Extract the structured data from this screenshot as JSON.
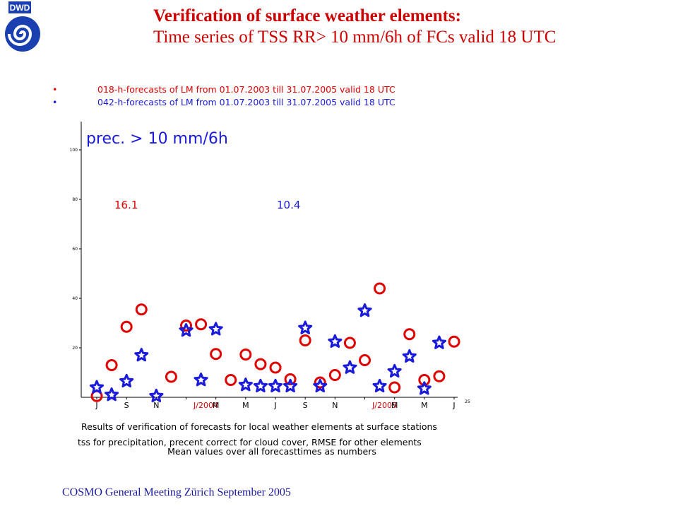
{
  "logo": {
    "text": "DWD"
  },
  "header": {
    "title": "Verification of surface weather elements:",
    "subtitle": "Time series of  TSS RR> 10 mm/6h  of FCs valid 18 UTC"
  },
  "footer": {
    "text": "COSMO General Meeting  Zürich September 2005"
  },
  "colors": {
    "series_018": "#e00000",
    "series_042": "#1a1adc",
    "title": "#cc0000",
    "footer": "#1a1a9e"
  },
  "chart_data": {
    "type": "scatter",
    "panel_title": "prec.  >  10  mm/6h",
    "legend": [
      {
        "marker": "•",
        "text": "018-h-forecasts  of  LM  from  01.07.2003  till  31.07.2005  valid  18  UTC",
        "color": "#e00000"
      },
      {
        "marker": "•",
        "text": "042-h-forecasts  of  LM  from  01.07.2003  till  31.07.2005  valid  18  UTC",
        "color": "#1a1adc"
      }
    ],
    "mean_values": [
      {
        "text": "16.1",
        "color": "#e00000"
      },
      {
        "text": "10.4",
        "color": "#1a1adc"
      }
    ],
    "y_ticks": [
      "100",
      "80",
      "60",
      "40",
      "20"
    ],
    "x_ticks": [
      "J",
      "S",
      "N",
      "J/2004",
      "M",
      "M",
      "J",
      "S",
      "N",
      "J/2005",
      "M",
      "M",
      "J",
      "25"
    ],
    "ylim": [
      0,
      100
    ],
    "series": [
      {
        "name": "018-h-forecasts",
        "marker": "circle",
        "color": "#e00000",
        "values": [
          0.5,
          13,
          28.5,
          35.5,
          null,
          8.3,
          29,
          29.5,
          17.5,
          7,
          17.3,
          13.4,
          12,
          7.3,
          23,
          6,
          9,
          22,
          15,
          44,
          4,
          25.5,
          7,
          8.5,
          22.5
        ]
      },
      {
        "name": "042-h-forecasts",
        "marker": "star",
        "color": "#1a1adc",
        "values": [
          4,
          1,
          6.5,
          17,
          0.5,
          null,
          27,
          7,
          27.5,
          null,
          5,
          4.5,
          4.5,
          4.5,
          28,
          4.5,
          22.5,
          12,
          35,
          4.5,
          10.5,
          16.5,
          3.5,
          22
        ]
      }
    ],
    "caption": [
      "Results  of  verification  of  forecasts  for  local  weather  elements  at  surface  stations",
      "tss  for  precipitation,  precent  correct  for  cloud  cover,    RMSE  for  other  elements",
      "Mean  values  over  all  forecasttimes  as  numbers"
    ]
  }
}
